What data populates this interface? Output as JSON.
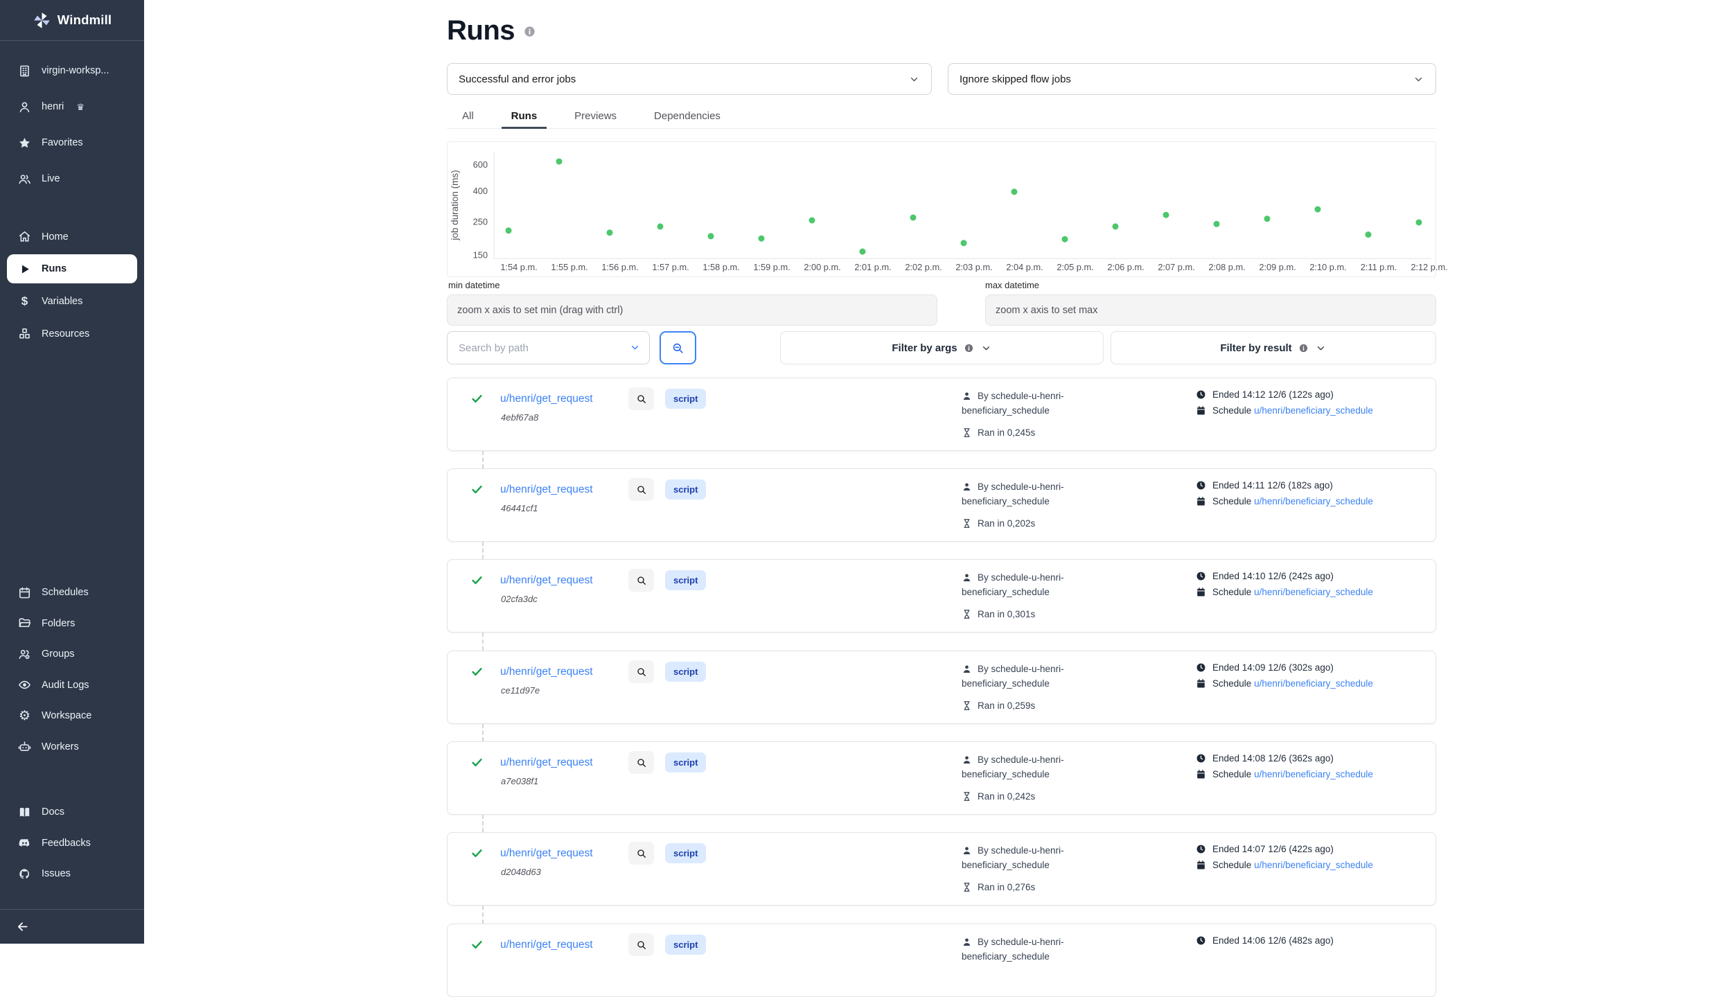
{
  "colors": {
    "sidebar_bg": "#2d3748",
    "accent": "#3b82f6",
    "link": "#3b82f6",
    "success_check": "#16a34a",
    "chart_point": "#4cc76c",
    "badge_bg": "#dbeafe",
    "badge_text": "#1e40af"
  },
  "sidebar": {
    "brand": "Windmill",
    "groups": [
      {
        "name": "context",
        "items": [
          {
            "label": "virgin-worksp...",
            "icon": "building"
          },
          {
            "label": "henri",
            "icon": "user",
            "suffix_icon": "crown"
          },
          {
            "label": "Favorites",
            "icon": "star"
          },
          {
            "label": "Live",
            "icon": "users"
          }
        ]
      },
      {
        "name": "primary",
        "items": [
          {
            "label": "Home",
            "icon": "home"
          },
          {
            "label": "Runs",
            "icon": "play",
            "active": true
          },
          {
            "label": "Variables",
            "icon": "dollar"
          },
          {
            "label": "Resources",
            "icon": "cubes"
          }
        ]
      },
      {
        "name": "admin",
        "items": [
          {
            "label": "Schedules",
            "icon": "calendar"
          },
          {
            "label": "Folders",
            "icon": "folder"
          },
          {
            "label": "Groups",
            "icon": "group"
          },
          {
            "label": "Audit Logs",
            "icon": "eye"
          },
          {
            "label": "Workspace",
            "icon": "gear"
          },
          {
            "label": "Workers",
            "icon": "robot"
          }
        ]
      },
      {
        "name": "help",
        "items": [
          {
            "label": "Docs",
            "icon": "book"
          },
          {
            "label": "Feedbacks",
            "icon": "discord"
          },
          {
            "label": "Issues",
            "icon": "github"
          }
        ]
      }
    ]
  },
  "header": {
    "title": "Runs",
    "job_filter_select": "Successful and error jobs",
    "skip_filter_select": "Ignore skipped flow jobs",
    "tabs": [
      "All",
      "Runs",
      "Previews",
      "Dependencies"
    ],
    "active_tab": "Runs"
  },
  "chart_data": {
    "type": "scatter",
    "title": "",
    "xlabel": "",
    "ylabel": "job duration (ms)",
    "yscale": "log",
    "yticks": [
      150,
      250,
      400,
      600
    ],
    "ylim": [
      150,
      700
    ],
    "grid": false,
    "legend": false,
    "point_color": "#4cc76c",
    "x": [
      "1:54 p.m.",
      "1:55 p.m.",
      "1:56 p.m.",
      "1:57 p.m.",
      "1:58 p.m.",
      "1:59 p.m.",
      "2:00 p.m.",
      "2:01 p.m.",
      "2:02 p.m.",
      "2:03 p.m.",
      "2:04 p.m.",
      "2:05 p.m.",
      "2:06 p.m.",
      "2:07 p.m.",
      "2:08 p.m.",
      "2:09 p.m.",
      "2:10 p.m.",
      "2:11 p.m.",
      "2:12 p.m."
    ],
    "series": [
      {
        "name": "job duration (ms)",
        "values": [
          218,
          628,
          211,
          232,
          200,
          193,
          255,
          158,
          266,
          180,
          395,
          191,
          232,
          277,
          241,
          261,
          302,
          205,
          247
        ]
      }
    ]
  },
  "datetime_filters": {
    "min_label": "min datetime",
    "min_placeholder": "zoom x axis to set min (drag with ctrl)",
    "max_label": "max datetime",
    "max_placeholder": "zoom x axis to set max"
  },
  "toolbar": {
    "search_placeholder": "Search by path",
    "filter_by_args": "Filter by args",
    "filter_by_result": "Filter by result"
  },
  "runs": [
    {
      "path": "u/henri/get_request",
      "hash": "4ebf67a8",
      "kind": "script",
      "triggered_by": "By schedule-u-henri-beneficiary_schedule",
      "duration": "Ran in 0,245s",
      "ended": "Ended 14:12 12/6 (122s ago)",
      "schedule_label": "Schedule",
      "schedule_path": "u/henri/beneficiary_schedule"
    },
    {
      "path": "u/henri/get_request",
      "hash": "46441cf1",
      "kind": "script",
      "triggered_by": "By schedule-u-henri-beneficiary_schedule",
      "duration": "Ran in 0,202s",
      "ended": "Ended 14:11 12/6 (182s ago)",
      "schedule_label": "Schedule",
      "schedule_path": "u/henri/beneficiary_schedule"
    },
    {
      "path": "u/henri/get_request",
      "hash": "02cfa3dc",
      "kind": "script",
      "triggered_by": "By schedule-u-henri-beneficiary_schedule",
      "duration": "Ran in 0,301s",
      "ended": "Ended 14:10 12/6 (242s ago)",
      "schedule_label": "Schedule",
      "schedule_path": "u/henri/beneficiary_schedule"
    },
    {
      "path": "u/henri/get_request",
      "hash": "ce11d97e",
      "kind": "script",
      "triggered_by": "By schedule-u-henri-beneficiary_schedule",
      "duration": "Ran in 0,259s",
      "ended": "Ended 14:09 12/6 (302s ago)",
      "schedule_label": "Schedule",
      "schedule_path": "u/henri/beneficiary_schedule"
    },
    {
      "path": "u/henri/get_request",
      "hash": "a7e038f1",
      "kind": "script",
      "triggered_by": "By schedule-u-henri-beneficiary_schedule",
      "duration": "Ran in 0,242s",
      "ended": "Ended 14:08 12/6 (362s ago)",
      "schedule_label": "Schedule",
      "schedule_path": "u/henri/beneficiary_schedule"
    },
    {
      "path": "u/henri/get_request",
      "hash": "d2048d63",
      "kind": "script",
      "triggered_by": "By schedule-u-henri-beneficiary_schedule",
      "duration": "Ran in 0,276s",
      "ended": "Ended 14:07 12/6 (422s ago)",
      "schedule_label": "Schedule",
      "schedule_path": "u/henri/beneficiary_schedule"
    },
    {
      "path": "u/henri/get_request",
      "kind": "script",
      "triggered_by": "By schedule-u-henri-beneficiary_schedule",
      "ended": "Ended 14:06 12/6 (482s ago)"
    }
  ]
}
